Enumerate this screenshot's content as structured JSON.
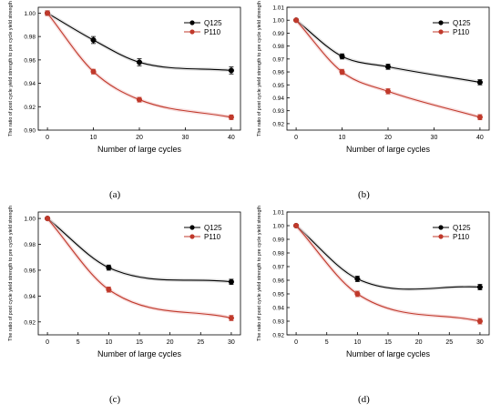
{
  "chart_data": [
    {
      "type": "line",
      "panel": "(a)",
      "xlabel": "Number of large cycles",
      "ylabel": "The ratio of post cycle yield strength to pre cycle  yield strength",
      "xlim": [
        -2,
        42
      ],
      "ylim": [
        0.9,
        1.005
      ],
      "xticks": [
        0,
        10,
        20,
        30,
        40
      ],
      "yticks": [
        0.9,
        0.92,
        0.94,
        0.96,
        0.98,
        1.0
      ],
      "ytick_labels": [
        "0.90",
        "0.92",
        "0.94",
        "0.96",
        "0.98",
        "1.00"
      ],
      "legend_position": "top-right",
      "x": [
        0,
        10,
        20,
        40
      ],
      "series": [
        {
          "name": "Q125",
          "color": "#000000",
          "values": [
            1.0,
            0.977,
            0.958,
            0.951
          ],
          "error": [
            0.002,
            0.003,
            0.003,
            0.003
          ]
        },
        {
          "name": "P110",
          "color": "#c0392b",
          "values": [
            1.0,
            0.95,
            0.926,
            0.911
          ],
          "error": [
            0.002,
            0.002,
            0.002,
            0.002
          ]
        }
      ]
    },
    {
      "type": "line",
      "panel": "(b)",
      "xlabel": "Number of large cycles",
      "ylabel": "The ratio of post cycle yield strength to pre cycle  yield strength",
      "xlim": [
        -2,
        42
      ],
      "ylim": [
        0.915,
        1.01
      ],
      "xticks": [
        0,
        10,
        20,
        30,
        40
      ],
      "yticks": [
        0.92,
        0.93,
        0.94,
        0.95,
        0.96,
        0.97,
        0.98,
        0.99,
        1.0,
        1.01
      ],
      "ytick_labels": [
        "0.92",
        "0.93",
        "0.94",
        "0.95",
        "0.96",
        "0.97",
        "0.98",
        "0.99",
        "1.00",
        "1.01"
      ],
      "legend_position": "top-right",
      "x": [
        0,
        10,
        20,
        40
      ],
      "series": [
        {
          "name": "Q125",
          "color": "#000000",
          "values": [
            1.0,
            0.972,
            0.964,
            0.952
          ],
          "error": [
            0.001,
            0.002,
            0.002,
            0.002
          ]
        },
        {
          "name": "P110",
          "color": "#c0392b",
          "values": [
            1.0,
            0.96,
            0.945,
            0.925
          ],
          "error": [
            0.001,
            0.002,
            0.002,
            0.002
          ]
        }
      ]
    },
    {
      "type": "line",
      "panel": "(c)",
      "xlabel": "Number of large cycles",
      "ylabel": "The ratio of post cycle yield strength to pre cycle  yield strength",
      "xlim": [
        -1.5,
        31.5
      ],
      "ylim": [
        0.91,
        1.005
      ],
      "xticks": [
        0,
        5,
        10,
        15,
        20,
        25,
        30
      ],
      "yticks": [
        0.92,
        0.94,
        0.96,
        0.98,
        1.0
      ],
      "ytick_labels": [
        "0.92",
        "0.94",
        "0.96",
        "0.98",
        "1.00"
      ],
      "legend_position": "top-right",
      "x": [
        0,
        10,
        30
      ],
      "series": [
        {
          "name": "Q125",
          "color": "#000000",
          "values": [
            1.0,
            0.962,
            0.951
          ],
          "error": [
            0.001,
            0.002,
            0.002
          ]
        },
        {
          "name": "P110",
          "color": "#c0392b",
          "values": [
            1.0,
            0.945,
            0.923
          ],
          "error": [
            0.001,
            0.002,
            0.002
          ]
        }
      ]
    },
    {
      "type": "line",
      "panel": "(d)",
      "xlabel": "Number of large cycles",
      "ylabel": "The ratio of post cycle yield strength to pre cycle  yield strength",
      "xlim": [
        -1.5,
        31.5
      ],
      "ylim": [
        0.92,
        1.01
      ],
      "xticks": [
        0,
        5,
        10,
        15,
        20,
        25,
        30
      ],
      "yticks": [
        0.92,
        0.93,
        0.94,
        0.95,
        0.96,
        0.97,
        0.98,
        0.99,
        1.0,
        1.01
      ],
      "ytick_labels": [
        "0.92",
        "0.93",
        "0.94",
        "0.95",
        "0.96",
        "0.97",
        "0.98",
        "0.99",
        "1.00",
        "1.01"
      ],
      "legend_position": "top-right",
      "x": [
        0,
        10,
        30
      ],
      "series": [
        {
          "name": "Q125",
          "color": "#000000",
          "values": [
            1.0,
            0.961,
            0.955
          ],
          "error": [
            0.001,
            0.002,
            0.002
          ]
        },
        {
          "name": "P110",
          "color": "#c0392b",
          "values": [
            1.0,
            0.95,
            0.93
          ],
          "error": [
            0.001,
            0.002,
            0.002
          ]
        }
      ]
    }
  ]
}
